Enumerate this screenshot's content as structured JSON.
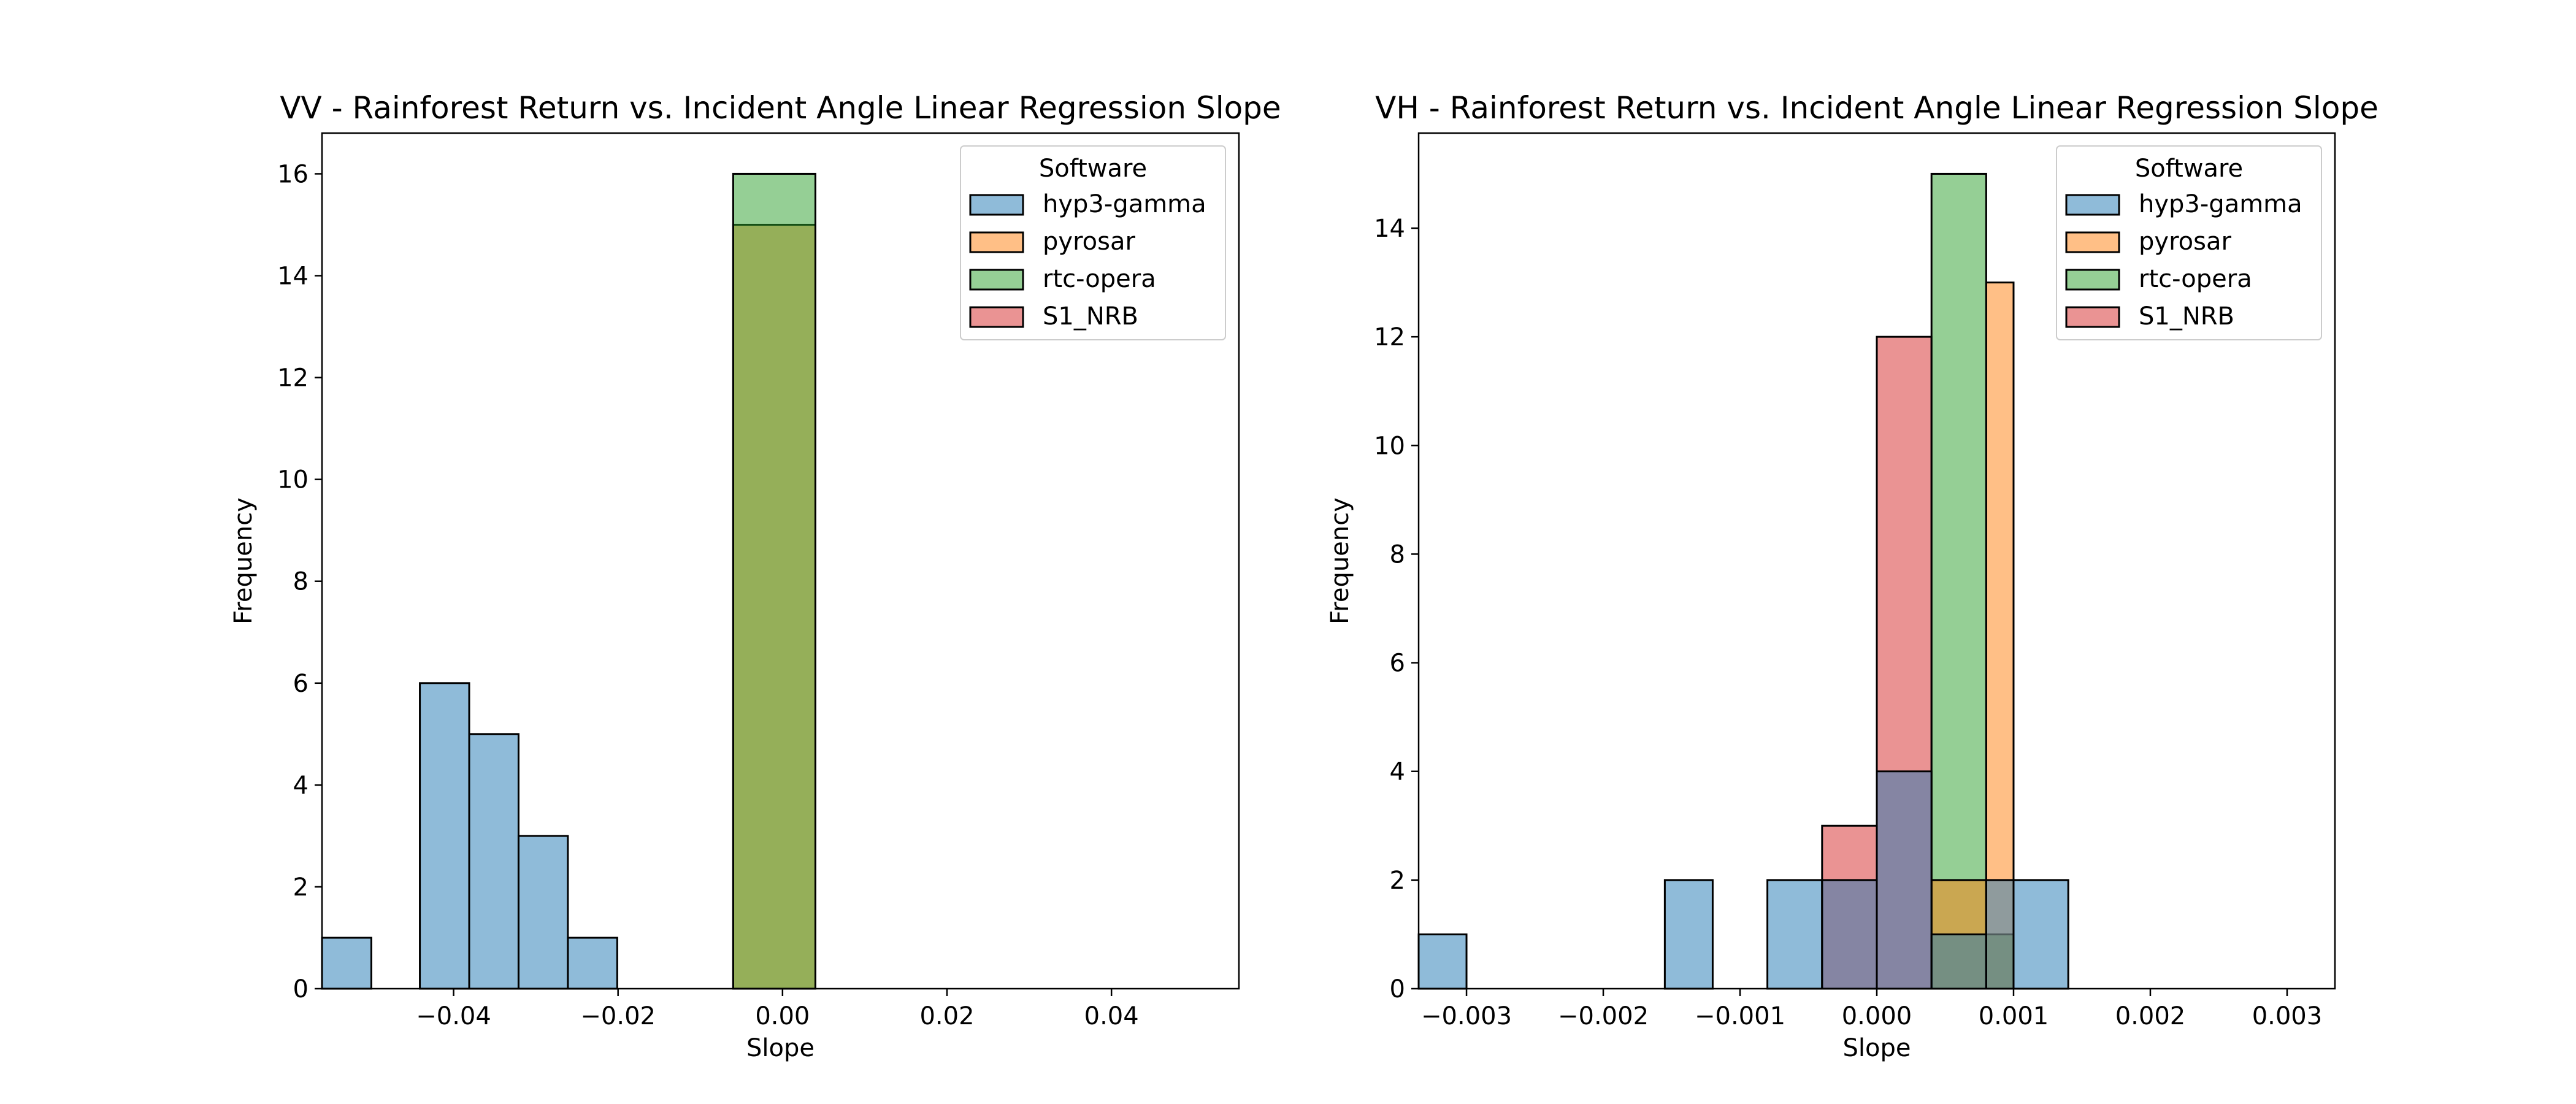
{
  "chart_data": [
    {
      "type": "histogram",
      "title": "VV - Rainforest Return vs. Incident Angle Linear Regression Slope",
      "xlabel": "Slope",
      "ylabel": "Frequency",
      "xlim": [
        -0.056,
        0.0555
      ],
      "ylim": [
        0,
        16.8
      ],
      "xticks": [
        -0.04,
        -0.02,
        0.0,
        0.02,
        0.04
      ],
      "xtick_labels": [
        "−0.04",
        "−0.02",
        "0.00",
        "0.02",
        "0.04"
      ],
      "yticks": [
        0,
        2,
        4,
        6,
        8,
        10,
        12,
        14,
        16
      ],
      "ytick_labels": [
        "0",
        "2",
        "4",
        "6",
        "8",
        "10",
        "12",
        "14",
        "16"
      ],
      "legend": {
        "title": "Software",
        "placement": "top-right",
        "entries": [
          "hyp3-gamma",
          "pyrosar",
          "rtc-opera",
          "S1_NRB"
        ]
      },
      "series": [
        {
          "name": "hyp3-gamma",
          "color": "#1f77b4",
          "bins": [
            {
              "x0": -0.056,
              "x1": -0.05,
              "count": 1
            },
            {
              "x0": -0.05,
              "x1": -0.0441,
              "count": 0
            },
            {
              "x0": -0.0441,
              "x1": -0.0381,
              "count": 6
            },
            {
              "x0": -0.0381,
              "x1": -0.0321,
              "count": 5
            },
            {
              "x0": -0.0321,
              "x1": -0.0261,
              "count": 3
            },
            {
              "x0": -0.0261,
              "x1": -0.0201,
              "count": 1
            },
            {
              "x0": -0.0201,
              "x1": -0.0142,
              "count": 0
            }
          ]
        },
        {
          "name": "pyrosar",
          "color": "#ff7f0e",
          "bins": [
            {
              "x0": -0.006,
              "x1": 0.004,
              "count": 15
            }
          ]
        },
        {
          "name": "rtc-opera",
          "color": "#2ca02c",
          "bins": [
            {
              "x0": -0.006,
              "x1": 0.004,
              "count": 16
            }
          ]
        },
        {
          "name": "S1_NRB",
          "color": "#d62728",
          "bins": []
        }
      ]
    },
    {
      "type": "histogram",
      "title": "VH - Rainforest Return vs. Incident Angle Linear Regression Slope",
      "xlabel": "Slope",
      "ylabel": "Frequency",
      "xlim": [
        -0.00335,
        0.00335
      ],
      "ylim": [
        0,
        15.75
      ],
      "xticks": [
        -0.003,
        -0.002,
        -0.001,
        0.0,
        0.001,
        0.002,
        0.003
      ],
      "xtick_labels": [
        "−0.003",
        "−0.002",
        "−0.001",
        "0.000",
        "0.001",
        "0.002",
        "0.003"
      ],
      "yticks": [
        0,
        2,
        4,
        6,
        8,
        10,
        12,
        14
      ],
      "ytick_labels": [
        "0",
        "2",
        "4",
        "6",
        "8",
        "10",
        "12",
        "14"
      ],
      "legend": {
        "title": "Software",
        "placement": "top-right",
        "entries": [
          "hyp3-gamma",
          "pyrosar",
          "rtc-opera",
          "S1_NRB"
        ]
      },
      "series": [
        {
          "name": "S1_NRB",
          "color": "#d62728",
          "bins": [
            {
              "x0": -0.0004,
              "x1": 0.0,
              "count": 3
            },
            {
              "x0": 0.0,
              "x1": 0.0004,
              "count": 12
            }
          ]
        },
        {
          "name": "rtc-opera",
          "color": "#2ca02c",
          "bins": [
            {
              "x0": 0.0004,
              "x1": 0.0008,
              "count": 15
            },
            {
              "x0": 0.0008,
              "x1": 0.001,
              "count": 1
            }
          ]
        },
        {
          "name": "pyrosar",
          "color": "#ff7f0e",
          "bins": [
            {
              "x0": 0.0004,
              "x1": 0.0008,
              "count": 2
            },
            {
              "x0": 0.0008,
              "x1": 0.001,
              "count": 13
            }
          ]
        },
        {
          "name": "hyp3-gamma",
          "color": "#1f77b4",
          "bins": [
            {
              "x0": -0.00335,
              "x1": -0.003,
              "count": 1
            },
            {
              "x0": -0.00155,
              "x1": -0.0012,
              "count": 2
            },
            {
              "x0": -0.0008,
              "x1": -0.0004,
              "count": 2
            },
            {
              "x0": -0.0004,
              "x1": 0.0,
              "count": 2
            },
            {
              "x0": 0.0,
              "x1": 0.0004,
              "count": 4
            },
            {
              "x0": 0.0004,
              "x1": 0.0008,
              "count": 1
            },
            {
              "x0": 0.0008,
              "x1": 0.001,
              "count": 2
            },
            {
              "x0": 0.001,
              "x1": 0.0014,
              "count": 2
            }
          ]
        }
      ]
    }
  ]
}
